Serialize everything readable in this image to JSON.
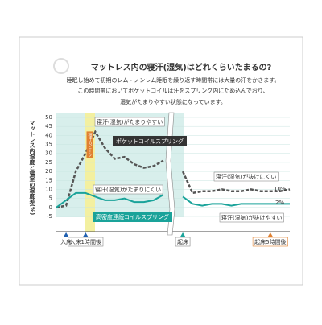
{
  "chart_data": {
    "type": "line",
    "title": "マットレス内の寝汗(湿気)はどれくらいたまるの?",
    "subtitle": [
      "睡眠し始めて初期のレム・ノンレム睡眠を繰り返す時間帯には大量の汗をかきます。",
      "この時間帯においてポケットコイルは汗をスプリング内にため込んでおり、",
      "湿気がたまりやすい状態になっています。"
    ],
    "y_label": "マットレス内湿度と寝室の湿度差(%)",
    "categories": [
      null,
      "入床",
      null,
      "入床1時間後",
      null,
      null,
      null,
      null,
      null,
      null,
      null,
      null,
      null,
      "起床",
      null,
      null,
      null,
      null,
      null,
      null,
      null,
      null,
      "起床5時間後",
      null,
      null
    ],
    "series": [
      {
        "name": "ポケットコイルスプリング",
        "color": "#555555",
        "values": [
          0,
          1,
          20,
          30,
          42,
          33,
          27,
          28,
          24,
          22,
          23,
          26,
          null,
          20,
          8,
          9,
          9,
          10,
          9,
          9,
          10,
          9,
          9,
          9,
          10
        ]
      },
      {
        "name": "高密度連続コイルスプリング",
        "color": "#1aa39a",
        "values": [
          0,
          4,
          8,
          8,
          6,
          4,
          4,
          5,
          3,
          3,
          4,
          7,
          null,
          6,
          2,
          1,
          2,
          2,
          1,
          2,
          2,
          2,
          2,
          2,
          2
        ]
      }
    ],
    "ylim": [
      -5,
      50
    ],
    "yticks": [
      -5,
      0,
      5,
      10,
      15,
      20,
      25,
      30,
      35,
      40,
      45,
      50
    ],
    "annotations": [
      "寝汗(湿気)がたまりやすい",
      "寝汗(湿気)がたまりにくい",
      "寝汗(湿気)が抜けにくい",
      "寝汗(湿気)が抜けやすい",
      "10%",
      "2%",
      "寝汗のピーク"
    ]
  }
}
